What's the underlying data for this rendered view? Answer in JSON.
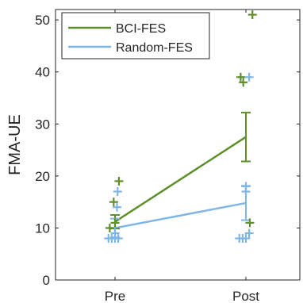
{
  "chart_data": {
    "type": "line",
    "categories": [
      "Pre",
      "Post"
    ],
    "ylabel": "FMA-UE",
    "ylim": [
      0,
      52
    ],
    "yticks": [
      0,
      10,
      20,
      30,
      40,
      50
    ],
    "grid": false,
    "legend_position": "top-left",
    "series": [
      {
        "name": "BCI-FES",
        "color": "#5d8f2a",
        "means": [
          11.2,
          27.5
        ],
        "errors": [
          1.3,
          4.7
        ],
        "points": [
          {
            "category": "Pre",
            "offset": -0.04,
            "value": 10
          },
          {
            "category": "Pre",
            "offset": 0.0,
            "value": 11
          },
          {
            "category": "Pre",
            "offset": -0.01,
            "value": 15
          },
          {
            "category": "Pre",
            "offset": 0.03,
            "value": 19
          },
          {
            "category": "Post",
            "offset": -0.04,
            "value": 39
          },
          {
            "category": "Post",
            "offset": -0.02,
            "value": 38
          },
          {
            "category": "Post",
            "offset": 0.05,
            "value": 51
          },
          {
            "category": "Post",
            "offset": 0.03,
            "value": 11
          }
        ]
      },
      {
        "name": "Random-FES",
        "color": "#7fb6e6",
        "means": [
          10,
          14.8
        ],
        "errors": [
          1.8,
          3.3
        ],
        "points": [
          {
            "category": "Pre",
            "offset": -0.05,
            "value": 8
          },
          {
            "category": "Pre",
            "offset": -0.025,
            "value": 8
          },
          {
            "category": "Pre",
            "offset": 0.0,
            "value": 8
          },
          {
            "category": "Pre",
            "offset": 0.025,
            "value": 8
          },
          {
            "category": "Pre",
            "offset": 0.0,
            "value": 9
          },
          {
            "category": "Pre",
            "offset": 0.015,
            "value": 14
          },
          {
            "category": "Pre",
            "offset": 0.02,
            "value": 17
          },
          {
            "category": "Post",
            "offset": -0.05,
            "value": 8
          },
          {
            "category": "Post",
            "offset": -0.025,
            "value": 8
          },
          {
            "category": "Post",
            "offset": 0.0,
            "value": 8
          },
          {
            "category": "Post",
            "offset": 0.025,
            "value": 9
          },
          {
            "category": "Post",
            "offset": 0.0,
            "value": 17
          },
          {
            "category": "Post",
            "offset": 0.0,
            "value": 18
          },
          {
            "category": "Post",
            "offset": 0.025,
            "value": 39
          }
        ]
      }
    ]
  }
}
